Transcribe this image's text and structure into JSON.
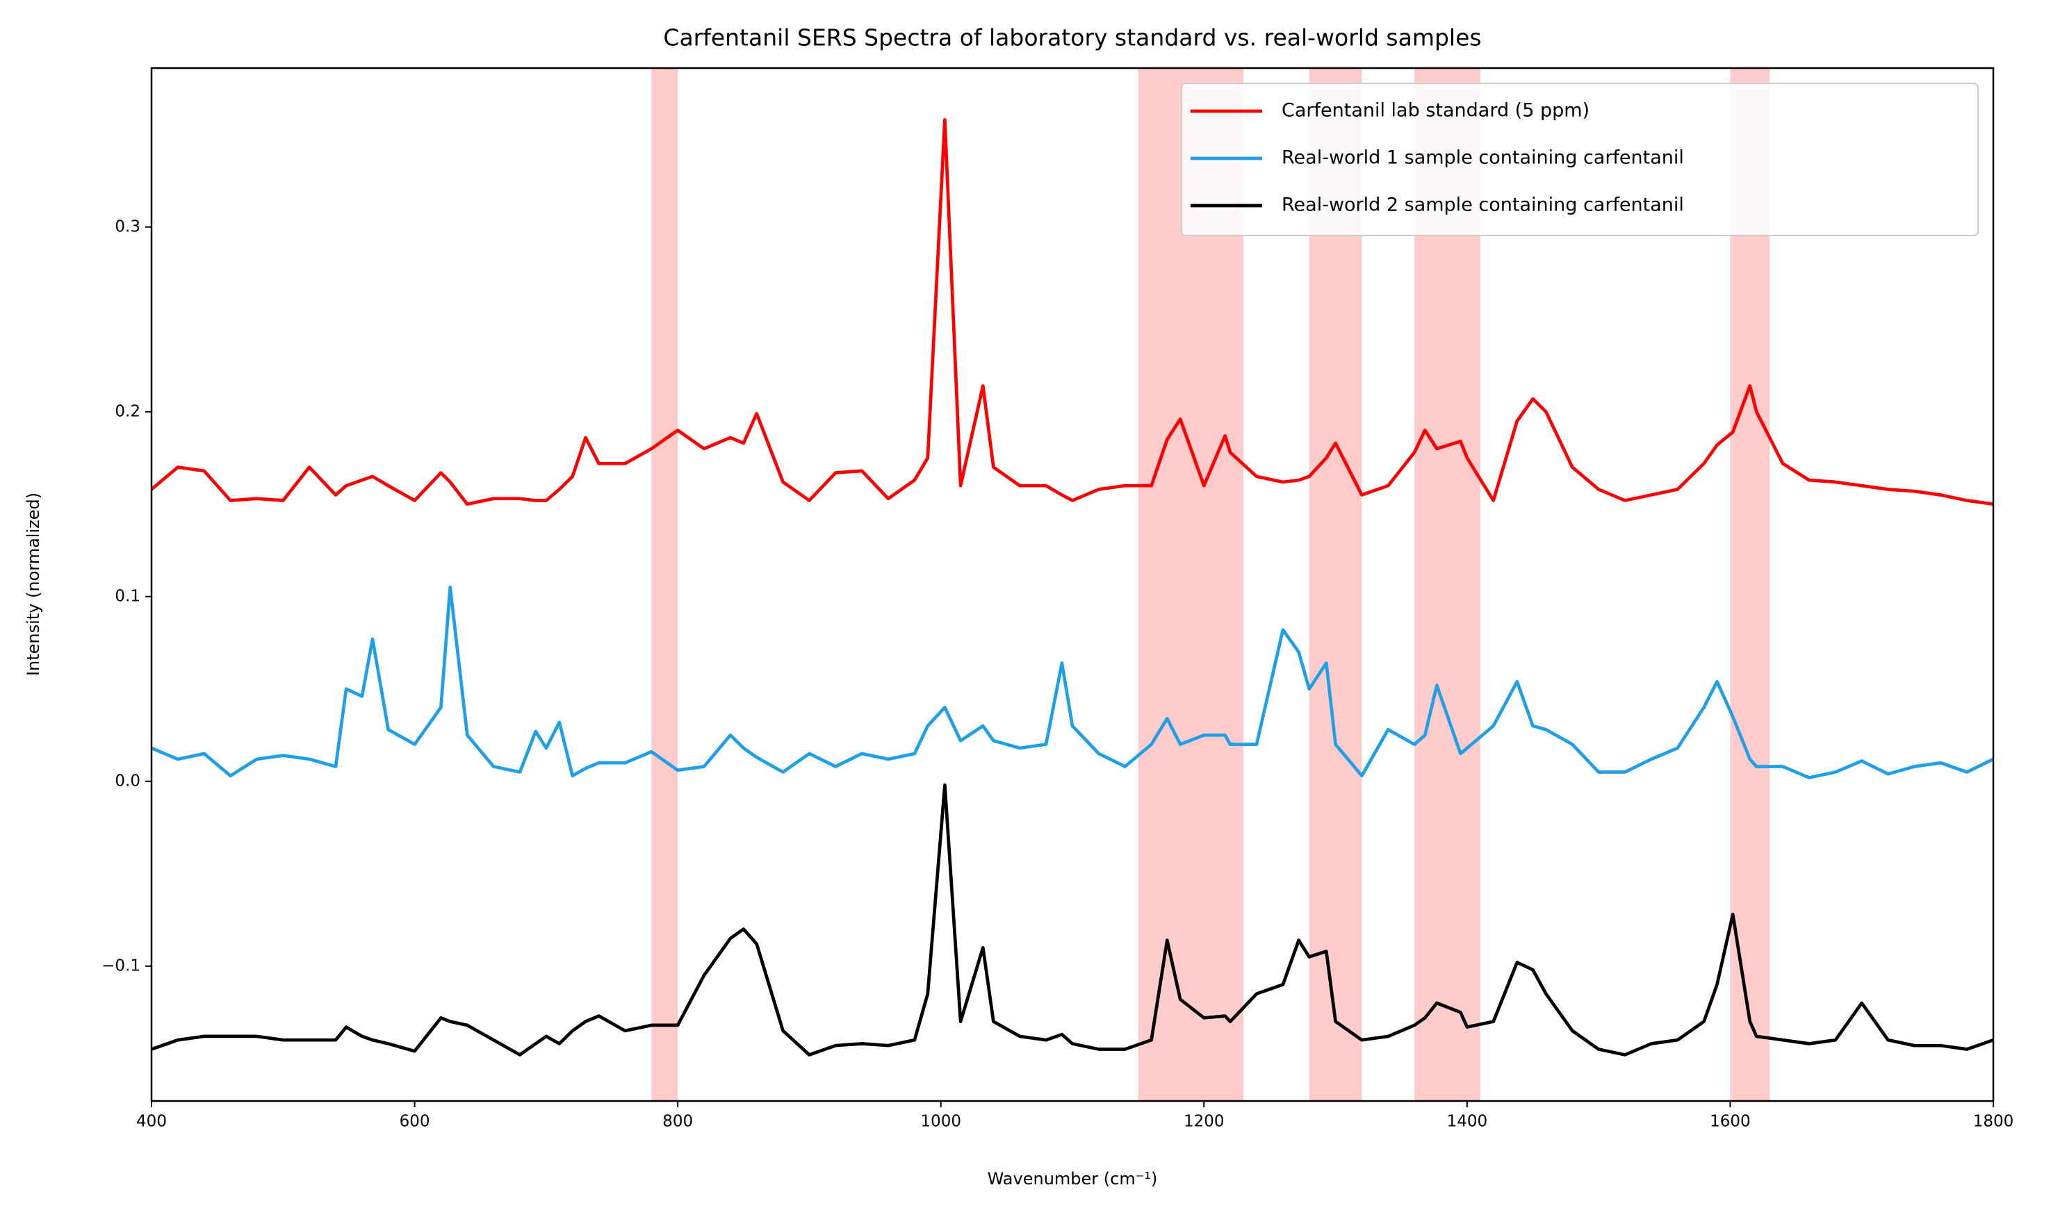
{
  "chart_data": {
    "type": "line",
    "title": "Carfentanil SERS Spectra of laboratory standard vs. real-world samples",
    "x_label": "Wavenumber (cm⁻¹)",
    "y_label": "Intensity (normalized)",
    "x": [
      400,
      420,
      440,
      460,
      480,
      500,
      520,
      540,
      548,
      560,
      568,
      580,
      600,
      620,
      627,
      640,
      660,
      680,
      692,
      700,
      710,
      720,
      730,
      740,
      760,
      780,
      800,
      820,
      840,
      850,
      860,
      880,
      900,
      920,
      940,
      960,
      980,
      990,
      1003,
      1015,
      1032,
      1040,
      1060,
      1080,
      1092,
      1100,
      1120,
      1140,
      1160,
      1172,
      1182,
      1200,
      1216,
      1220,
      1240,
      1260,
      1272,
      1280,
      1293,
      1300,
      1320,
      1340,
      1360,
      1368,
      1377,
      1395,
      1400,
      1420,
      1438,
      1450,
      1460,
      1480,
      1500,
      1520,
      1540,
      1560,
      1580,
      1590,
      1602,
      1615,
      1620,
      1640,
      1660,
      1680,
      1700,
      1720,
      1740,
      1760,
      1780,
      1800
    ],
    "series": [
      {
        "name": "Carfentanil lab standard (5 ppm)",
        "color": "#ff0000",
        "values": [
          0.158,
          0.17,
          0.168,
          0.152,
          0.153,
          0.152,
          0.17,
          0.155,
          0.16,
          0.163,
          0.165,
          0.16,
          0.152,
          0.167,
          0.162,
          0.15,
          0.153,
          0.153,
          0.152,
          0.152,
          0.158,
          0.165,
          0.186,
          0.172,
          0.172,
          0.18,
          0.19,
          0.18,
          0.186,
          0.183,
          0.199,
          0.162,
          0.152,
          0.167,
          0.168,
          0.153,
          0.163,
          0.175,
          0.358,
          0.16,
          0.214,
          0.17,
          0.16,
          0.16,
          0.155,
          0.152,
          0.158,
          0.16,
          0.16,
          0.185,
          0.196,
          0.16,
          0.187,
          0.178,
          0.165,
          0.162,
          0.163,
          0.165,
          0.175,
          0.183,
          0.155,
          0.16,
          0.178,
          0.19,
          0.18,
          0.184,
          0.175,
          0.152,
          0.195,
          0.207,
          0.2,
          0.17,
          0.158,
          0.152,
          0.155,
          0.158,
          0.172,
          0.182,
          0.189,
          0.214,
          0.2,
          0.172,
          0.163,
          0.162,
          0.16,
          0.158,
          0.157,
          0.155,
          0.152,
          0.15
        ]
      },
      {
        "name": "Real-world 1 sample containing carfentanil",
        "color": "#1f9fe8",
        "values": [
          0.018,
          0.012,
          0.015,
          0.003,
          0.012,
          0.014,
          0.012,
          0.008,
          0.05,
          0.046,
          0.077,
          0.028,
          0.02,
          0.04,
          0.105,
          0.025,
          0.008,
          0.005,
          0.027,
          0.018,
          0.032,
          0.003,
          0.007,
          0.01,
          0.01,
          0.016,
          0.006,
          0.008,
          0.025,
          0.018,
          0.013,
          0.005,
          0.015,
          0.008,
          0.015,
          0.012,
          0.015,
          0.03,
          0.04,
          0.022,
          0.03,
          0.022,
          0.018,
          0.02,
          0.064,
          0.03,
          0.015,
          0.008,
          0.02,
          0.034,
          0.02,
          0.025,
          0.025,
          0.02,
          0.02,
          0.082,
          0.07,
          0.05,
          0.064,
          0.02,
          0.003,
          0.028,
          0.02,
          0.025,
          0.052,
          0.015,
          0.018,
          0.03,
          0.054,
          0.03,
          0.028,
          0.02,
          0.005,
          0.005,
          0.012,
          0.018,
          0.04,
          0.054,
          0.035,
          0.012,
          0.008,
          0.008,
          0.002,
          0.005,
          0.011,
          0.004,
          0.008,
          0.01,
          0.005,
          0.012
        ]
      },
      {
        "name": "Real-world 2 sample containing carfentanil",
        "color": "#000000",
        "values": [
          -0.145,
          -0.14,
          -0.138,
          -0.138,
          -0.138,
          -0.14,
          -0.14,
          -0.14,
          -0.133,
          -0.138,
          -0.14,
          -0.142,
          -0.146,
          -0.128,
          -0.13,
          -0.132,
          -0.14,
          -0.148,
          -0.142,
          -0.138,
          -0.142,
          -0.135,
          -0.13,
          -0.127,
          -0.135,
          -0.132,
          -0.132,
          -0.105,
          -0.085,
          -0.08,
          -0.088,
          -0.135,
          -0.148,
          -0.143,
          -0.142,
          -0.143,
          -0.14,
          -0.115,
          -0.002,
          -0.13,
          -0.09,
          -0.13,
          -0.138,
          -0.14,
          -0.137,
          -0.142,
          -0.145,
          -0.145,
          -0.14,
          -0.086,
          -0.118,
          -0.128,
          -0.127,
          -0.13,
          -0.115,
          -0.11,
          -0.086,
          -0.095,
          -0.092,
          -0.13,
          -0.14,
          -0.138,
          -0.132,
          -0.128,
          -0.12,
          -0.125,
          -0.133,
          -0.13,
          -0.098,
          -0.102,
          -0.115,
          -0.135,
          -0.145,
          -0.148,
          -0.142,
          -0.14,
          -0.13,
          -0.11,
          -0.072,
          -0.13,
          -0.138,
          -0.14,
          -0.142,
          -0.14,
          -0.12,
          -0.14,
          -0.143,
          -0.143,
          -0.145,
          -0.14
        ]
      }
    ],
    "highlight_ranges": [
      [
        780,
        800
      ],
      [
        1150,
        1230
      ],
      [
        1280,
        1320
      ],
      [
        1360,
        1410
      ],
      [
        1600,
        1630
      ]
    ],
    "highlight_color": "#ffcccc",
    "xlim": [
      400,
      1800
    ],
    "xticks": [
      400,
      600,
      800,
      1000,
      1200,
      1400,
      1600,
      1800
    ],
    "ylim": [
      -0.173,
      0.386
    ],
    "yticks": [
      {
        "value": -0.1,
        "label": "−0.1"
      },
      {
        "value": 0,
        "label": "0.0"
      },
      0.1,
      0.2,
      0.3
    ],
    "grid": false,
    "legend": "upper right"
  }
}
